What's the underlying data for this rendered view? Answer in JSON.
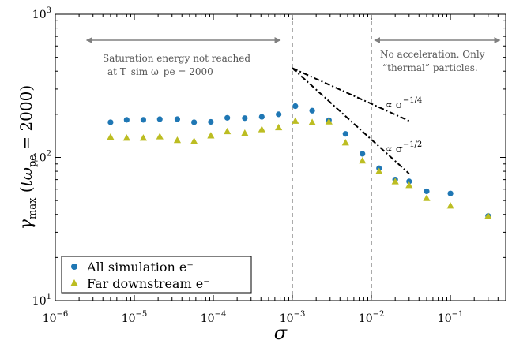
{
  "chart_data": {
    "type": "scatter",
    "title": "",
    "xlabel": "σ",
    "ylabel": "γ_max (t ω_pe = 2000)",
    "xscale": "log",
    "yscale": "log",
    "xlim": [
      1e-06,
      0.5
    ],
    "ylim": [
      10,
      1000
    ],
    "x_ticks": [
      {
        "value": 1e-06,
        "base": "10",
        "exp": "−6"
      },
      {
        "value": 1e-05,
        "base": "10",
        "exp": "−5"
      },
      {
        "value": 0.0001,
        "base": "10",
        "exp": "−4"
      },
      {
        "value": 0.001,
        "base": "10",
        "exp": "−3"
      },
      {
        "value": 0.01,
        "base": "10",
        "exp": "−2"
      },
      {
        "value": 0.1,
        "base": "10",
        "exp": "−1"
      }
    ],
    "y_ticks": [
      {
        "value": 10,
        "base": "10",
        "exp": "1"
      },
      {
        "value": 100,
        "base": "10",
        "exp": "2"
      },
      {
        "value": 1000,
        "base": "10",
        "exp": "3"
      }
    ],
    "grid": false,
    "legend_position": "bottom-left",
    "series": [
      {
        "name": "All simulation e⁻",
        "marker": "circle",
        "color": "#1f77b4",
        "x": [
          5e-06,
          8e-06,
          1.3e-05,
          2.1e-05,
          3.5e-05,
          5.7e-05,
          9.3e-05,
          0.00015,
          0.00025,
          0.00041,
          0.00067,
          0.00109,
          0.00178,
          0.0029,
          0.0047,
          0.0077,
          0.0125,
          0.02,
          0.03,
          0.05,
          0.1,
          0.3
        ],
        "y": [
          176,
          183,
          183,
          185,
          185,
          176,
          177,
          189,
          188,
          192,
          200,
          228,
          212,
          182,
          146,
          106,
          84,
          70,
          68,
          58,
          56,
          39
        ]
      },
      {
        "name": "Far downstream e⁻",
        "marker": "triangle",
        "color": "#bcbd22",
        "x": [
          5e-06,
          8e-06,
          1.3e-05,
          2.1e-05,
          3.5e-05,
          5.7e-05,
          9.3e-05,
          0.00015,
          0.00025,
          0.00041,
          0.00067,
          0.00109,
          0.00178,
          0.0029,
          0.0047,
          0.0077,
          0.0125,
          0.02,
          0.03,
          0.05,
          0.1,
          0.3
        ],
        "y": [
          139,
          137,
          137,
          140,
          132,
          130,
          142,
          152,
          148,
          157,
          162,
          180,
          176,
          178,
          127,
          95,
          80,
          68,
          64,
          52,
          46,
          39
        ]
      }
    ],
    "reference_lines": [
      {
        "label_main": "∝ σ",
        "label_exp": "−1/4",
        "x": [
          0.001,
          0.03
        ],
        "y": [
          420,
          180
        ]
      },
      {
        "label_main": "∝ σ",
        "label_exp": "−1/2",
        "x": [
          0.001,
          0.03
        ],
        "y": [
          420,
          77
        ]
      }
    ],
    "vertical_lines": [
      0.001,
      0.01
    ],
    "annotations": [
      {
        "lines": [
          "Saturation energy not reached",
          "at T_sim ω_pe = 2000"
        ]
      },
      {
        "lines": [
          "No acceleration. Only",
          "“thermal” particles."
        ]
      }
    ],
    "region_arrows": [
      {
        "from": 2.5e-06,
        "to": 0.0007
      },
      {
        "from": 0.011,
        "to": 0.42
      }
    ]
  }
}
